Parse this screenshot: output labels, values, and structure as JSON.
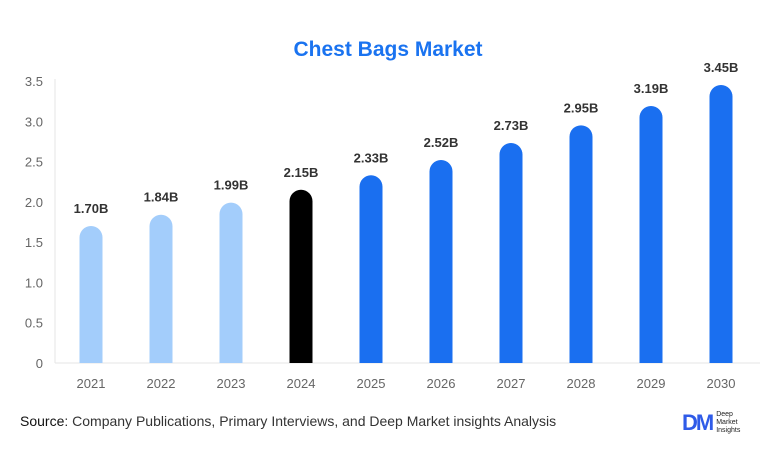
{
  "chart_data": {
    "type": "bar",
    "title": "Chest Bags Market",
    "categories": [
      "2021",
      "2022",
      "2023",
      "2024",
      "2025",
      "2026",
      "2027",
      "2028",
      "2029",
      "2030"
    ],
    "values": [
      1.7,
      1.84,
      1.99,
      2.15,
      2.33,
      2.52,
      2.73,
      2.95,
      3.19,
      3.45
    ],
    "data_labels": [
      "1.70B",
      "1.84B",
      "1.99B",
      "2.15B",
      "2.33B",
      "2.52B",
      "2.73B",
      "2.95B",
      "3.19B",
      "3.45B"
    ],
    "yticks": [
      "0",
      "0.5",
      "1.0",
      "1.5",
      "2.0",
      "2.5",
      "3.0",
      "3.5"
    ],
    "ylim": [
      0,
      3.5
    ],
    "xlabel": "",
    "ylabel": "",
    "grid": false,
    "colors": {
      "historical": "#a3cdfb",
      "base_year": "#000000",
      "forecast": "#1a6ff0",
      "title": "#1a73f0"
    }
  },
  "footer": {
    "source_label": "Source",
    "source_text": ": Company Publications, Primary Interviews, and Deep Market insights Analysis",
    "logo_mark": "DM",
    "logo_text": [
      "Deep",
      "Market",
      "Insights"
    ]
  }
}
